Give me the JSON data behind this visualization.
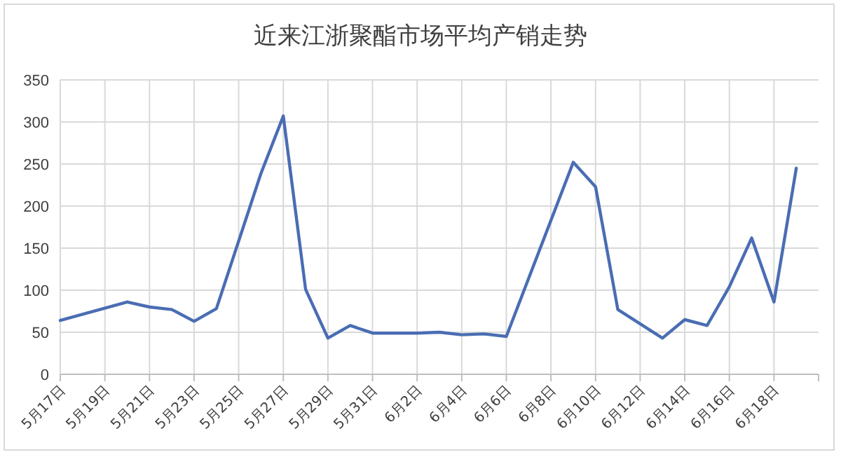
{
  "chart_data": {
    "type": "line",
    "title": "近来江浙聚酯市场平均产销走势",
    "x": [
      "--05-17",
      "--05-20",
      "--05-21",
      "--05-22",
      "--05-23",
      "--05-24",
      "--05-26",
      "--05-27",
      "--05-28",
      "--05-29",
      "--05-30",
      "--05-31",
      "--06-01",
      "--06-02",
      "--06-03",
      "--06-04",
      "--06-05",
      "--06-06",
      "--06-09",
      "--06-10",
      "--06-11",
      "--06-13",
      "--06-14",
      "--06-15",
      "--06-16",
      "--06-17",
      "--06-18",
      "--06-19"
    ],
    "series": [
      {
        "color": "#4a6db3",
        "values": [
          64,
          86,
          80,
          77,
          63,
          78,
          239,
          307,
          101,
          43,
          58,
          49,
          49,
          49,
          50,
          47,
          48,
          45,
          252,
          223,
          77,
          43,
          65,
          58,
          104,
          162,
          86,
          245
        ]
      }
    ],
    "xlim": [
      "--05-17",
      "--06-20"
    ],
    "xticks": [
      {
        "value": "--05-17",
        "label": "5月17日"
      },
      {
        "value": "--05-19",
        "label": "5月19日"
      },
      {
        "value": "--05-21",
        "label": "5月21日"
      },
      {
        "value": "--05-23",
        "label": "5月23日"
      },
      {
        "value": "--05-25",
        "label": "5月25日"
      },
      {
        "value": "--05-27",
        "label": "5月27日"
      },
      {
        "value": "--05-29",
        "label": "5月29日"
      },
      {
        "value": "--05-31",
        "label": "5月31日"
      },
      {
        "value": "--06-02",
        "label": "6月2日"
      },
      {
        "value": "--06-04",
        "label": "6月4日"
      },
      {
        "value": "--06-06",
        "label": "6月6日"
      },
      {
        "value": "--06-08",
        "label": "6月8日"
      },
      {
        "value": "--06-10",
        "label": "6月10日"
      },
      {
        "value": "--06-12",
        "label": "6月12日"
      },
      {
        "value": "--06-14",
        "label": "6月14日"
      },
      {
        "value": "--06-16",
        "label": "6月16日"
      },
      {
        "value": "--06-18",
        "label": "6月18日"
      }
    ],
    "ylim": [
      0,
      350
    ],
    "yticks": [
      0,
      50,
      100,
      150,
      200,
      250,
      300,
      350
    ],
    "grid": true,
    "marker": "none",
    "line_style": "solid"
  }
}
